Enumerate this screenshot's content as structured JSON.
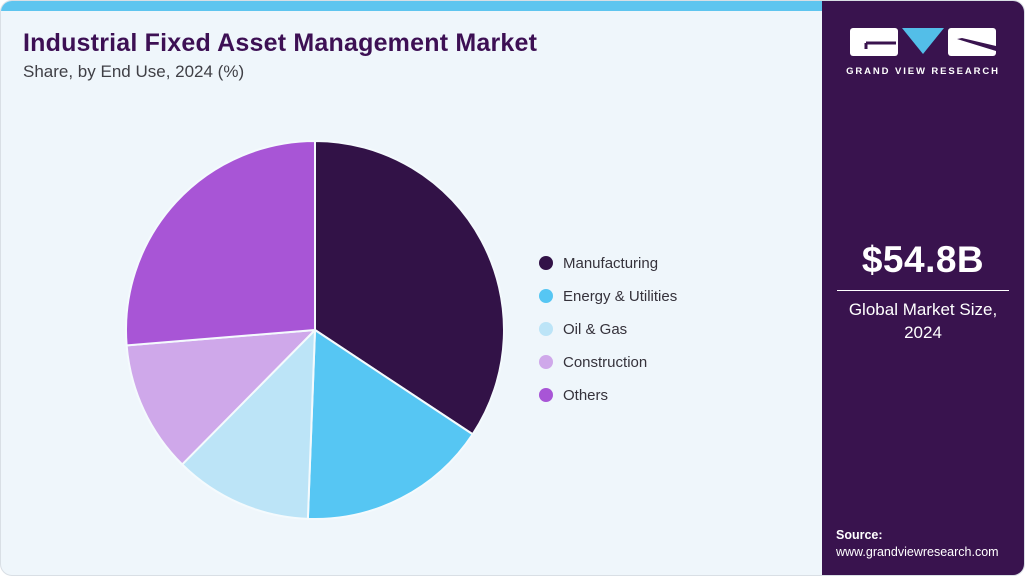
{
  "header": {
    "title": "Industrial Fixed Asset Management Market",
    "subtitle": "Share, by End Use, 2024 (%)"
  },
  "chart_data": {
    "type": "pie",
    "title": "Industrial Fixed Asset Management Market Share, by End Use, 2024 (%)",
    "start_angle": "12 o'clock",
    "direction": "clockwise",
    "legend_position": "right",
    "slices": [
      {
        "label": "Manufacturing",
        "value": 34.3,
        "color": "#321247"
      },
      {
        "label": "Energy & Utilities",
        "value": 16.3,
        "color": "#56C6F3"
      },
      {
        "label": "Oil & Gas",
        "value": 11.8,
        "color": "#BCE4F7"
      },
      {
        "label": "Construction",
        "value": 11.3,
        "color": "#CFA8EA"
      },
      {
        "label": "Others",
        "value": 26.3,
        "color": "#A855D6"
      }
    ]
  },
  "panel": {
    "brand_name": "GRAND VIEW RESEARCH",
    "market_size_value": "$54.8B",
    "market_size_label": "Global Market Size, 2024",
    "source_label": "Source:",
    "source_url": "www.grandviewresearch.com"
  },
  "colors": {
    "accent_bar": "#5EC5EF",
    "main_background": "#EFF6FB",
    "panel_background": "#39134E",
    "title_text": "#3D1054",
    "logo_triangle": "#53BEE8",
    "slice_stroke": "#F4FAFD"
  }
}
